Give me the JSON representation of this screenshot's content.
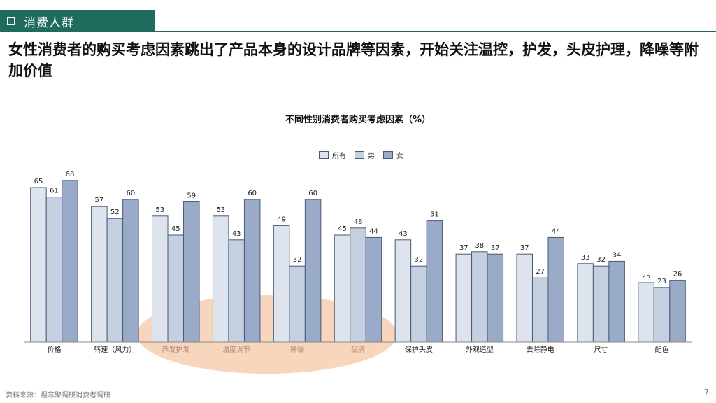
{
  "header": {
    "section_label": "消费人群",
    "headline": "女性消费者的购买考虑因素跳出了产品本身的设计品牌等因素，开始关注温控，护发，头皮护理，降噪等附加价值"
  },
  "footer": {
    "source": "资料来源：煜寒聚调研消费者调研",
    "page_number": "7"
  },
  "colors": {
    "header_green": "#1f6b5c",
    "series_all": "#dde4ee",
    "series_male": "#c4cfe0",
    "series_female": "#9aaac9",
    "highlight": "#f5c8a8"
  },
  "chart_data": {
    "type": "bar",
    "title": "不同性别消费者购买考虑因素（%）",
    "xlabel": "",
    "ylabel": "",
    "ylim": [
      0,
      75
    ],
    "grid": false,
    "legend_position": "top-center",
    "categories": [
      "价格",
      "转速（风力）",
      "养发护发",
      "温度调节",
      "降噪",
      "品牌",
      "保护头皮",
      "外观造型",
      "去除静电",
      "尺寸",
      "配色"
    ],
    "series": [
      {
        "name": "所有",
        "values": [
          65,
          57,
          53,
          53,
          49,
          45,
          43,
          37,
          37,
          33,
          25
        ]
      },
      {
        "name": "男",
        "values": [
          61,
          52,
          45,
          43,
          32,
          48,
          32,
          38,
          27,
          32,
          23
        ]
      },
      {
        "name": "女",
        "values": [
          68,
          60,
          59,
          60,
          60,
          44,
          51,
          37,
          44,
          34,
          26
        ]
      }
    ],
    "highlighted_categories": [
      "养发护发",
      "温度调节",
      "降噪",
      "品牌"
    ]
  }
}
